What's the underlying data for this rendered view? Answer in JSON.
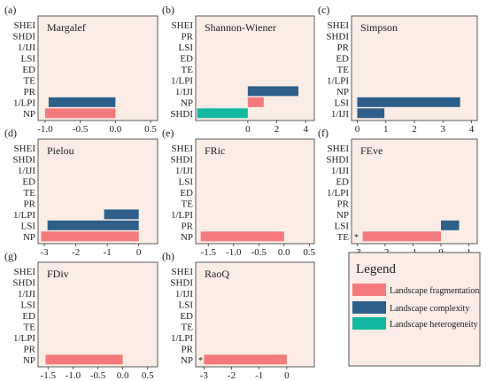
{
  "colors": {
    "panel_bg": "#FBEDE6",
    "frag": "#F47A7C",
    "complex": "#2D5F8A",
    "hetero": "#14B8A0",
    "axis": "#333333",
    "legend_border": "#555555"
  },
  "legend": {
    "title": "Legend",
    "items": [
      {
        "label": "Landscape fragmentation",
        "color_key": "frag"
      },
      {
        "label": "Landscape complexity",
        "color_key": "complex"
      },
      {
        "label": "Landscape heterogeneity",
        "color_key": "hetero"
      }
    ]
  },
  "chart_data": [
    {
      "type": "bar",
      "orientation": "horizontal",
      "panel_label": "(a)",
      "title": "Margalef",
      "categories": [
        "SHEI",
        "SHDI",
        "1/IJI",
        "LSI",
        "ED",
        "TE",
        "PR",
        "1/LPI",
        "NP"
      ],
      "xlim": [
        -1.1,
        0.6
      ],
      "xticks": [
        -1.0,
        -0.5,
        0.0,
        0.5
      ],
      "xtick_labels": [
        "-1.0",
        "-0.5",
        "0.0",
        "0.5"
      ],
      "bars": [
        {
          "category": "1/LPI",
          "value": -0.95,
          "group": "complex"
        },
        {
          "category": "NP",
          "value": -1.0,
          "group": "frag"
        }
      ]
    },
    {
      "type": "bar",
      "orientation": "horizontal",
      "panel_label": "(b)",
      "title": "Shannon-Wiener",
      "categories": [
        "SHEI",
        "PR",
        "LSI",
        "ED",
        "TE",
        "1/LPI",
        "1/IJI",
        "NP",
        "SHDI"
      ],
      "xlim": [
        -3.6,
        4.6
      ],
      "xticks": [
        0,
        2,
        4
      ],
      "xtick_labels": [
        "0",
        "2",
        "4"
      ],
      "bars": [
        {
          "category": "1/IJI",
          "value": 3.5,
          "group": "complex"
        },
        {
          "category": "NP",
          "value": 1.1,
          "group": "frag"
        },
        {
          "category": "SHDI",
          "value": -3.5,
          "group": "hetero"
        }
      ]
    },
    {
      "type": "bar",
      "orientation": "horizontal",
      "panel_label": "(c)",
      "title": "Simpson",
      "categories": [
        "SHEI",
        "SHDI",
        "PR",
        "ED",
        "TE",
        "1/LPI",
        "NP",
        "LSI",
        "1/IJI"
      ],
      "xlim": [
        -0.2,
        4.2
      ],
      "xticks": [
        0,
        1,
        2,
        3,
        4
      ],
      "xtick_labels": [
        "0",
        "1",
        "2",
        "3",
        "4"
      ],
      "bars": [
        {
          "category": "LSI",
          "value": 3.6,
          "group": "complex"
        },
        {
          "category": "1/IJI",
          "value": 0.95,
          "group": "complex"
        }
      ]
    },
    {
      "type": "bar",
      "orientation": "horizontal",
      "panel_label": "(d)",
      "title": "Pielou",
      "categories": [
        "SHEI",
        "SHDI",
        "1/IJI",
        "ED",
        "TE",
        "PR",
        "1/LPI",
        "LSI",
        "NP"
      ],
      "xlim": [
        -3.2,
        0.6
      ],
      "xticks": [
        -3,
        -2,
        -1,
        0
      ],
      "xtick_labels": [
        "-3",
        "-2",
        "-1",
        "0"
      ],
      "bars": [
        {
          "category": "1/LPI",
          "value": -1.1,
          "group": "complex"
        },
        {
          "category": "LSI",
          "value": -2.9,
          "group": "complex"
        },
        {
          "category": "NP",
          "value": -3.1,
          "group": "frag"
        }
      ]
    },
    {
      "type": "bar",
      "orientation": "horizontal",
      "panel_label": "(e)",
      "title": "FRic",
      "categories": [
        "SHEI",
        "SHDI",
        "1/IJI",
        "LSI",
        "ED",
        "TE",
        "1/LPI",
        "PR",
        "NP"
      ],
      "xlim": [
        -1.75,
        0.6
      ],
      "xticks": [
        -1.5,
        -1.0,
        -0.5,
        0.0,
        0.5
      ],
      "xtick_labels": [
        "-1.5",
        "-1.0",
        "-0.5",
        "0.0",
        "0.5"
      ],
      "bars": [
        {
          "category": "NP",
          "value": -1.65,
          "group": "frag"
        }
      ]
    },
    {
      "type": "bar",
      "orientation": "horizontal",
      "panel_label": "(f)",
      "title": "FEve",
      "categories": [
        "SHEI",
        "SHDI",
        "1/IJI",
        "ED",
        "1/LPI",
        "PR",
        "NP",
        "LSI",
        "TE"
      ],
      "xlim": [
        -3.2,
        1.3
      ],
      "xticks": [
        -3,
        -2,
        -1,
        0,
        1
      ],
      "xtick_labels": [
        "-3",
        "-2",
        "-1",
        "0",
        "1"
      ],
      "bars": [
        {
          "category": "LSI",
          "value": 0.65,
          "group": "complex"
        },
        {
          "category": "TE",
          "value": -2.8,
          "group": "frag"
        }
      ],
      "annotation": "*"
    },
    {
      "type": "bar",
      "orientation": "horizontal",
      "panel_label": "(g)",
      "title": "FDiv",
      "categories": [
        "SHEI",
        "SHDI",
        "1/IJI",
        "LSI",
        "ED",
        "TE",
        "1/LPI",
        "PR",
        "NP"
      ],
      "xlim": [
        -1.7,
        0.7
      ],
      "xticks": [
        -1.5,
        -1.0,
        -0.5,
        0.0,
        0.5
      ],
      "xtick_labels": [
        "-1.5",
        "-1.0",
        "-0.5",
        "0.0",
        "0.5"
      ],
      "bars": [
        {
          "category": "NP",
          "value": -1.55,
          "group": "frag"
        }
      ]
    },
    {
      "type": "bar",
      "orientation": "horizontal",
      "panel_label": "(h)",
      "title": "RaoQ",
      "categories": [
        "SHEI",
        "SHDI",
        "1/IJI",
        "LSI",
        "ED",
        "TE",
        "1/LPI",
        "PR",
        "NP"
      ],
      "xlim": [
        -3.3,
        1.0
      ],
      "xticks": [
        -3,
        -2,
        -1,
        0
      ],
      "xtick_labels": [
        "-3",
        "-2",
        "-1",
        "0"
      ],
      "bars": [
        {
          "category": "NP",
          "value": -3.0,
          "group": "frag"
        }
      ],
      "annotation": "*"
    }
  ]
}
